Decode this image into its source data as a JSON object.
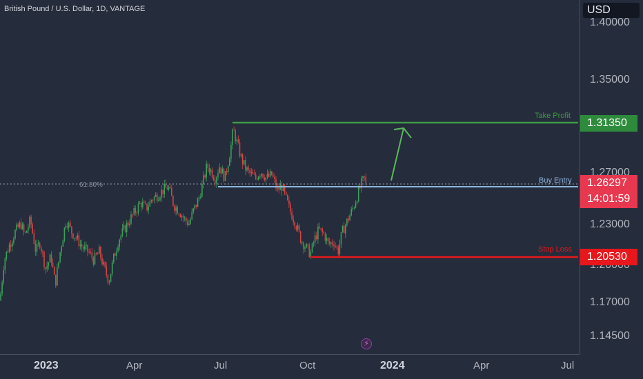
{
  "symbol": {
    "title": "British Pound / U.S. Dollar, 1D, VANTAGE"
  },
  "currency": "USD",
  "price_axis": {
    "ticks": [
      "1.40000",
      "1.35000",
      "1.27000",
      "1.23000",
      "1.20000",
      "1.17000",
      "1.14500"
    ]
  },
  "time_axis": {
    "ticks": [
      {
        "label": "2023",
        "bold": true
      },
      {
        "label": "Apr",
        "bold": false
      },
      {
        "label": "Jul",
        "bold": false
      },
      {
        "label": "Oct",
        "bold": false
      },
      {
        "label": "2024",
        "bold": true
      },
      {
        "label": "Apr",
        "bold": false
      },
      {
        "label": "Jul",
        "bold": false
      }
    ]
  },
  "levels": {
    "take_profit": {
      "label": "Take Profit",
      "price": "1.31350",
      "color": "#3e9b46"
    },
    "buy_entry": {
      "label": "Buy Entry",
      "color": "#8fb6de"
    },
    "stop_loss": {
      "label": "Stop Loss",
      "price": "1.20530",
      "color": "#e8171c"
    },
    "fib": {
      "label": "61.80%"
    }
  },
  "last_price": {
    "price": "1.26297",
    "countdown": "14:01:59",
    "color": "#e8384f"
  },
  "colors": {
    "background": "#252c3b",
    "up": "#3ea05a",
    "down": "#d44545"
  },
  "icons": {
    "flash": "lightning-icon"
  },
  "chart_data": {
    "type": "candlestick",
    "x_ticks": [
      "2023",
      "Apr",
      "Jul",
      "Oct",
      "2024",
      "Apr",
      "Jul"
    ],
    "y_ticks": [
      1.4,
      1.35,
      1.27,
      1.23,
      1.2,
      1.17,
      1.145
    ],
    "ylim": [
      1.128,
      1.418
    ],
    "path_keypoints": [
      [
        0,
        1.172
      ],
      [
        6,
        1.205
      ],
      [
        14,
        1.218
      ],
      [
        22,
        1.228
      ],
      [
        30,
        1.235
      ],
      [
        36,
        1.225
      ],
      [
        44,
        1.238
      ],
      [
        52,
        1.212
      ],
      [
        58,
        1.22
      ],
      [
        66,
        1.198
      ],
      [
        74,
        1.208
      ],
      [
        80,
        1.185
      ],
      [
        88,
        1.215
      ],
      [
        96,
        1.238
      ],
      [
        104,
        1.228
      ],
      [
        112,
        1.222
      ],
      [
        120,
        1.215
      ],
      [
        128,
        1.212
      ],
      [
        136,
        1.205
      ],
      [
        144,
        1.212
      ],
      [
        150,
        1.2
      ],
      [
        158,
        1.188
      ],
      [
        164,
        1.205
      ],
      [
        172,
        1.222
      ],
      [
        180,
        1.23
      ],
      [
        188,
        1.238
      ],
      [
        196,
        1.245
      ],
      [
        204,
        1.252
      ],
      [
        212,
        1.247
      ],
      [
        220,
        1.255
      ],
      [
        228,
        1.258
      ],
      [
        236,
        1.262
      ],
      [
        244,
        1.265
      ],
      [
        252,
        1.25
      ],
      [
        260,
        1.245
      ],
      [
        268,
        1.238
      ],
      [
        274,
        1.235
      ],
      [
        280,
        1.245
      ],
      [
        288,
        1.255
      ],
      [
        294,
        1.268
      ],
      [
        300,
        1.282
      ],
      [
        306,
        1.278
      ],
      [
        312,
        1.272
      ],
      [
        318,
        1.282
      ],
      [
        326,
        1.272
      ],
      [
        334,
        1.295
      ],
      [
        338,
        1.312
      ],
      [
        344,
        1.3
      ],
      [
        350,
        1.288
      ],
      [
        356,
        1.28
      ],
      [
        362,
        1.276
      ],
      [
        370,
        1.272
      ],
      [
        378,
        1.278
      ],
      [
        386,
        1.272
      ],
      [
        394,
        1.275
      ],
      [
        402,
        1.262
      ],
      [
        408,
        1.266
      ],
      [
        414,
        1.256
      ],
      [
        420,
        1.246
      ],
      [
        428,
        1.236
      ],
      [
        436,
        1.222
      ],
      [
        444,
        1.215
      ],
      [
        450,
        1.21
      ],
      [
        456,
        1.222
      ],
      [
        462,
        1.23
      ],
      [
        470,
        1.226
      ],
      [
        476,
        1.218
      ],
      [
        484,
        1.22
      ],
      [
        490,
        1.212
      ],
      [
        496,
        1.228
      ],
      [
        504,
        1.238
      ],
      [
        512,
        1.248
      ],
      [
        518,
        1.258
      ],
      [
        524,
        1.268
      ],
      [
        528,
        1.272
      ],
      [
        532,
        1.262
      ]
    ]
  }
}
